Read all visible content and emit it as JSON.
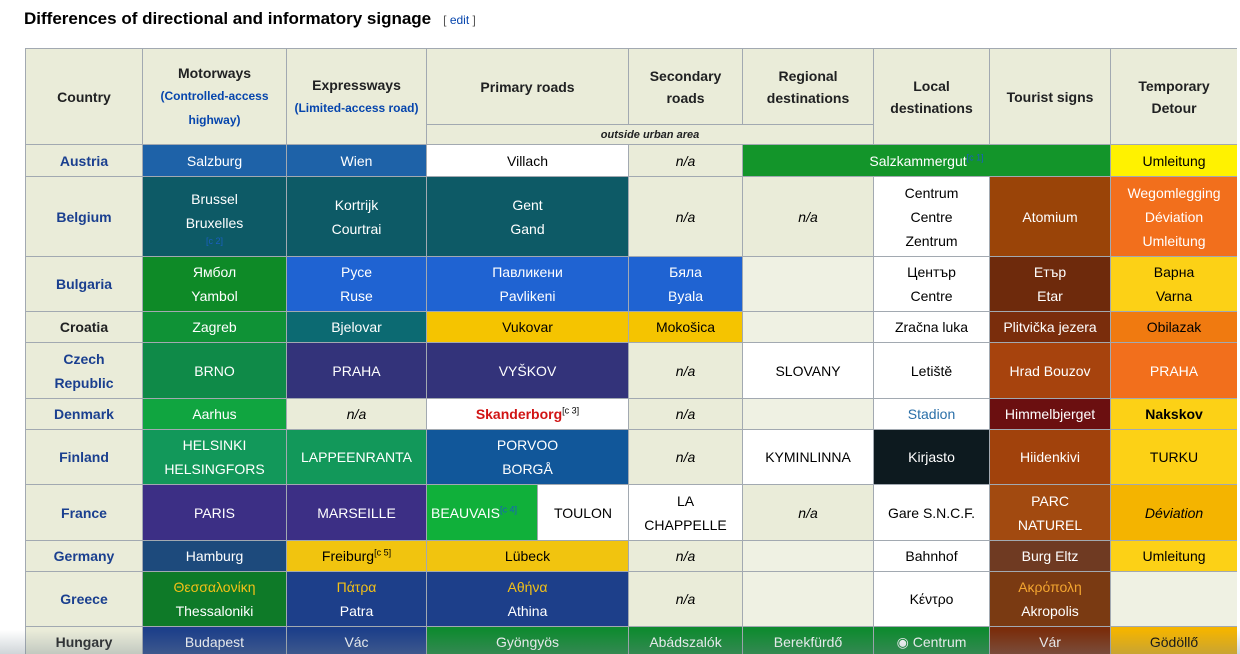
{
  "heading": {
    "title": "Differences of directional and informatory signage",
    "edit_open": "[ ",
    "edit_label": "edit",
    "edit_close": " ]"
  },
  "headers": {
    "country": "Country",
    "motorways": "Motorways",
    "motorways_link": "(Controlled-access highway)",
    "expressways": "Expressways",
    "expressways_link": "(Limited-access road)",
    "primary": "Primary roads",
    "secondary": "Secondary roads",
    "regional": "Regional destinations",
    "local": "Local destinations",
    "tourist": "Tourist signs",
    "detour": "Temporary Detour",
    "outside": "outside urban area"
  },
  "rows": {
    "austria": {
      "country": "Austria",
      "motorway": "Salzburg",
      "expressway": "Wien",
      "primary": "Villach",
      "secondary": "n/a",
      "regional_local": "Salzkammergut",
      "ref": "[c 1]",
      "detour": "Umleitung"
    },
    "belgium": {
      "country": "Belgium",
      "motorway_1": "Brussel",
      "motorway_2": "Bruxelles",
      "motorway_ref": "[c 2]",
      "expressway_1": "Kortrijk",
      "expressway_2": "Courtrai",
      "primary_1": "Gent",
      "primary_2": "Gand",
      "secondary": "n/a",
      "regional": "n/a",
      "local_1": "Centrum",
      "local_2": "Centre",
      "local_3": "Zentrum",
      "tourist": "Atomium",
      "detour_1": "Wegomlegging",
      "detour_2": "Déviation",
      "detour_3": "Umleitung"
    },
    "bulgaria": {
      "country": "Bulgaria",
      "motorway_1": "Ямбол",
      "motorway_2": "Yambol",
      "expressway_1": "Русе",
      "expressway_2": "Ruse",
      "primary_1": "Павликени",
      "primary_2": "Pavlikeni",
      "secondary_1": "Бяла",
      "secondary_2": "Byala",
      "local_1": "Център",
      "local_2": "Centre",
      "tourist_1": "Етър",
      "tourist_2": "Etar",
      "detour_1": "Варна",
      "detour_2": "Varna"
    },
    "croatia": {
      "country": "Croatia",
      "motorway": "Zagreb",
      "expressway": "Bjelovar",
      "primary": "Vukovar",
      "secondary": "Mokošica",
      "local": "Zračna luka",
      "tourist": "Plitvička jezera",
      "detour": "Obilazak"
    },
    "czech": {
      "country_1": "Czech",
      "country_2": "Republic",
      "motorway": "BRNO",
      "expressway": "PRAHA",
      "primary": "VYŠKOV",
      "secondary": "n/a",
      "regional": "SLOVANY",
      "local": "Letiště",
      "tourist": "Hrad Bouzov",
      "detour": "PRAHA"
    },
    "denmark": {
      "country": "Denmark",
      "motorway": "Aarhus",
      "expressway": "n/a",
      "primary": "Skanderborg",
      "primary_ref": "[c 3]",
      "secondary": "n/a",
      "local": "Stadion",
      "tourist": "Himmelbjerget",
      "detour": "Nakskov"
    },
    "finland": {
      "country": "Finland",
      "motorway_1": "HELSINKI",
      "motorway_2": "HELSINGFORS",
      "expressway": "LAPPEENRANTA",
      "primary_1": "PORVOO",
      "primary_2": "BORGÅ",
      "secondary": "n/a",
      "regional": "KYMINLINNA",
      "local": "Kirjasto",
      "tourist": "Hiidenkivi",
      "detour": "TURKU"
    },
    "france": {
      "country": "France",
      "motorway": "PARIS",
      "expressway": "MARSEILLE",
      "primary_a": "BEAUVAIS",
      "primary_a_ref": "[c 4]",
      "primary_b": "TOULON",
      "secondary_1": "LA",
      "secondary_2": "CHAPPELLE",
      "regional": "n/a",
      "local": "Gare S.N.C.F.",
      "tourist_1": "PARC",
      "tourist_2": "NATUREL",
      "detour": "Déviation"
    },
    "germany": {
      "country": "Germany",
      "motorway": "Hamburg",
      "expressway": "Freiburg",
      "expressway_ref": "[c 5]",
      "primary": "Lübeck",
      "secondary": "n/a",
      "local": "Bahnhof",
      "tourist": "Burg Eltz",
      "detour": "Umleitung"
    },
    "greece": {
      "country": "Greece",
      "motorway_1": "Θεσσαλονίκη",
      "motorway_2": "Thessaloniki",
      "expressway_1": "Πάτρα",
      "expressway_2": "Patra",
      "primary_1": "Αθήνα",
      "primary_2": "Athina",
      "secondary": "n/a",
      "local": "Κέντρο",
      "tourist_1": "Ακρόπολη",
      "tourist_2": "Akropolis"
    },
    "hungary": {
      "country": "Hungary",
      "motorway": "Budapest",
      "expressway": "Vác",
      "primary": "Gyöngyös",
      "secondary": "Abádszalók",
      "regional": "Berekfürdő",
      "local": "◉ Centrum",
      "tourist": "Vár",
      "detour": "Gödöllő"
    }
  },
  "colors": {
    "header_bg": "#eaecd9",
    "na_bg": "#eaecd9",
    "link": "#0645ad",
    "country_link": "#1a3f8f"
  }
}
